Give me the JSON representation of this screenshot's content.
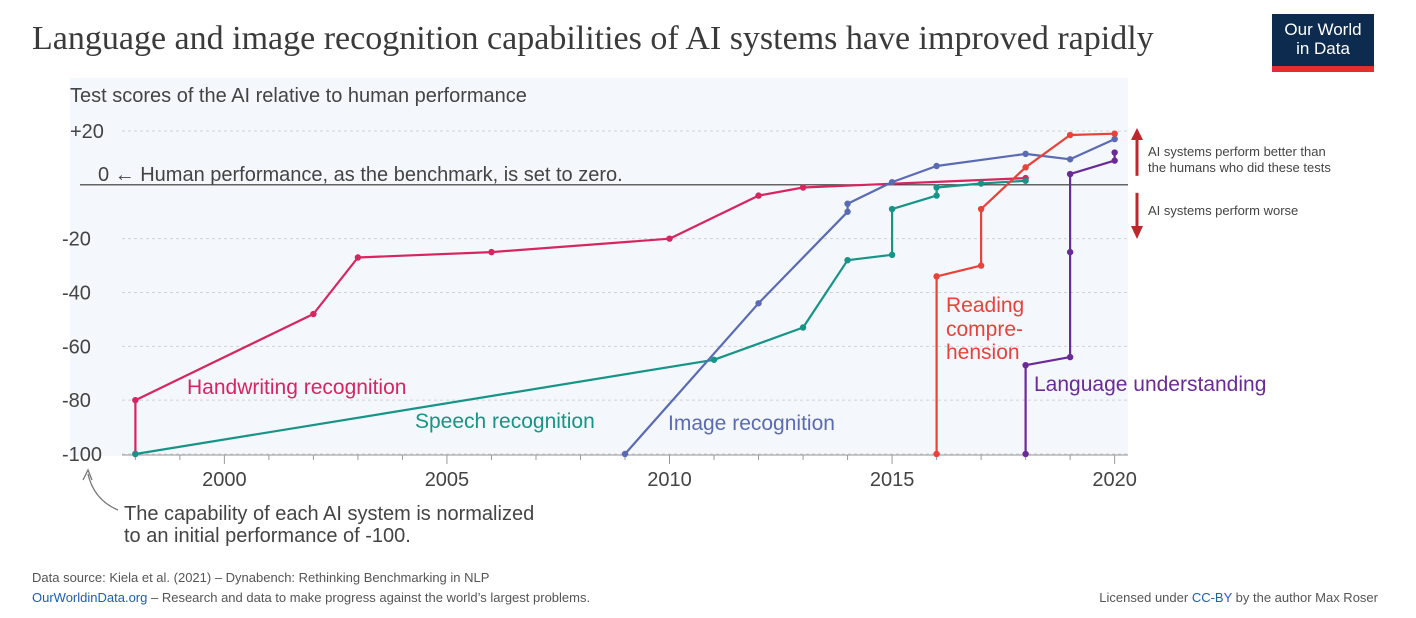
{
  "header": {
    "title": "Language and image recognition capabilities of AI systems have improved rapidly",
    "logo_line1": "Our World",
    "logo_line2": "in Data"
  },
  "colors": {
    "handwriting": "#d6255f",
    "speech": "#169487",
    "image": "#5a6bb3",
    "reading": "#e8423a",
    "language": "#6a2a98",
    "arrow": "#c0272d",
    "plot_bg": "#f4f7fb"
  },
  "chart_data": {
    "type": "line",
    "ylabel": "Test scores of the AI relative to human performance",
    "zero_annotation": "0 ← Human performance, as the benchmark, is set to zero.",
    "better_annotation": [
      "AI systems perform better than",
      "the humans who did these tests"
    ],
    "worse_annotation": "AI systems perform worse",
    "normalization_note": [
      "The capability of each AI system is normalized",
      "to an initial performance of -100."
    ],
    "xlim": [
      1997.7,
      2020.3
    ],
    "ylim": [
      -100,
      20
    ],
    "x_ticks": [
      2000,
      2005,
      2010,
      2015,
      2020
    ],
    "y_ticks": [
      {
        "value": 20,
        "label": "+20"
      },
      {
        "value": -20,
        "label": "-20"
      },
      {
        "value": -40,
        "label": "-40"
      },
      {
        "value": -60,
        "label": "-60"
      },
      {
        "value": -80,
        "label": "-80"
      },
      {
        "value": -100,
        "label": "-100"
      }
    ],
    "series": [
      {
        "key": "handwriting",
        "name": "Handwriting recognition",
        "x": [
          1998,
          1998,
          2002,
          2003,
          2006,
          2010,
          2012,
          2013,
          2018
        ],
        "y": [
          -100,
          -80,
          -48,
          -27,
          -25,
          -20,
          -4,
          -1,
          2.5
        ]
      },
      {
        "key": "speech",
        "name": "Speech recognition",
        "x": [
          1998,
          2011,
          2013,
          2014,
          2015,
          2015,
          2016,
          2016,
          2017,
          2018
        ],
        "y": [
          -100,
          -65,
          -53,
          -28,
          -26,
          -9,
          -4,
          -1,
          0.5,
          1.5
        ]
      },
      {
        "key": "image",
        "name": "Image recognition",
        "x": [
          2009,
          2012,
          2014,
          2014,
          2015,
          2016,
          2018,
          2019,
          2020
        ],
        "y": [
          -100,
          -44,
          -10,
          -7,
          1,
          7,
          11.5,
          9.5,
          17
        ]
      },
      {
        "key": "reading",
        "name": [
          "Reading",
          "compre-",
          "hension"
        ],
        "x": [
          2016,
          2016,
          2017,
          2017,
          2018,
          2019,
          2020
        ],
        "y": [
          -100,
          -34,
          -30,
          -9,
          6.5,
          18.5,
          19
        ]
      },
      {
        "key": "language",
        "name": "Language understanding",
        "x": [
          2018,
          2018,
          2019,
          2019,
          2019,
          2020,
          2020
        ],
        "y": [
          -100,
          -67,
          -64,
          -25,
          4,
          9,
          12
        ]
      }
    ]
  },
  "footer": {
    "source": "Data source: Kiela et al. (2021) – Dynabench: Rethinking Benchmarking in NLP",
    "site_link": "OurWorldinData.org",
    "site_tagline": " – Research and data to make progress against the world’s largest problems.",
    "license_prefix": "Licensed under ",
    "license_link": "CC-BY",
    "license_suffix": " by the author Max Roser"
  }
}
